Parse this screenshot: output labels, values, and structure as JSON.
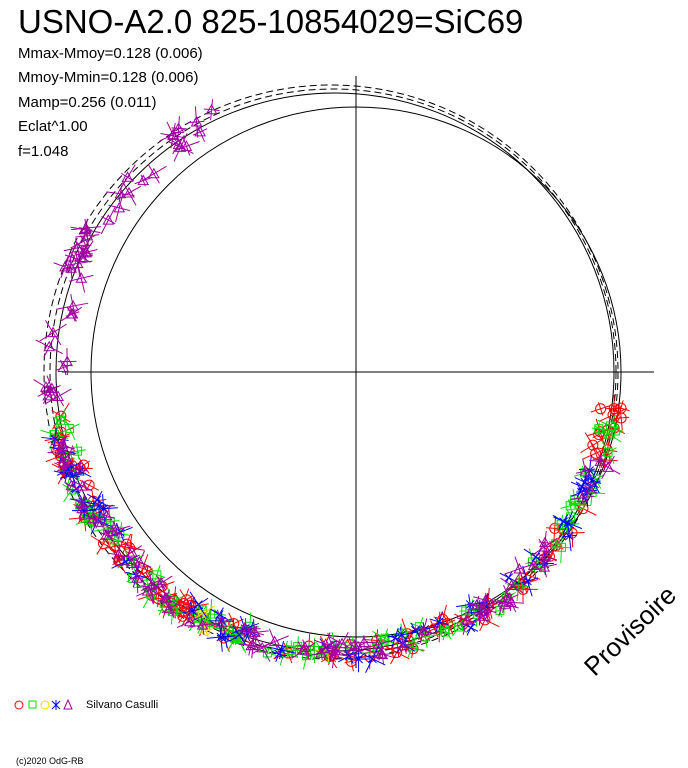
{
  "chart_data": {
    "type": "scatter",
    "title": "USNO-A2.0 825-10854029=SiC69",
    "stats": [
      "Mmax-Mmoy=0.128 (0.006)",
      "Mmoy-Mmin=0.128 (0.006)",
      "Mamp=0.256 (0.011)",
      "Eclat^1.00",
      "f=1.048"
    ],
    "legend_author": "Silvano Casulli",
    "watermark": "Provisoire",
    "copyright": "(c)2020 OdG-RB",
    "series": [
      {
        "marker": "circle",
        "color": "#ff0000",
        "count": 95,
        "phase_range": [
          0.02,
          0.48
        ]
      },
      {
        "marker": "square",
        "color": "#00dd00",
        "count": 85,
        "phase_range": [
          0.02,
          0.48
        ]
      },
      {
        "marker": "diamond",
        "color": "#ffd700",
        "count": 3,
        "phase_range": [
          0.25,
          0.36
        ]
      },
      {
        "marker": "star",
        "color": "#0000ff",
        "count": 55,
        "phase_range": [
          0.05,
          0.48
        ]
      },
      {
        "marker": "triangle",
        "color": "#a000a0",
        "count": 120,
        "phase_range": [
          0.05,
          0.68
        ]
      }
    ]
  }
}
